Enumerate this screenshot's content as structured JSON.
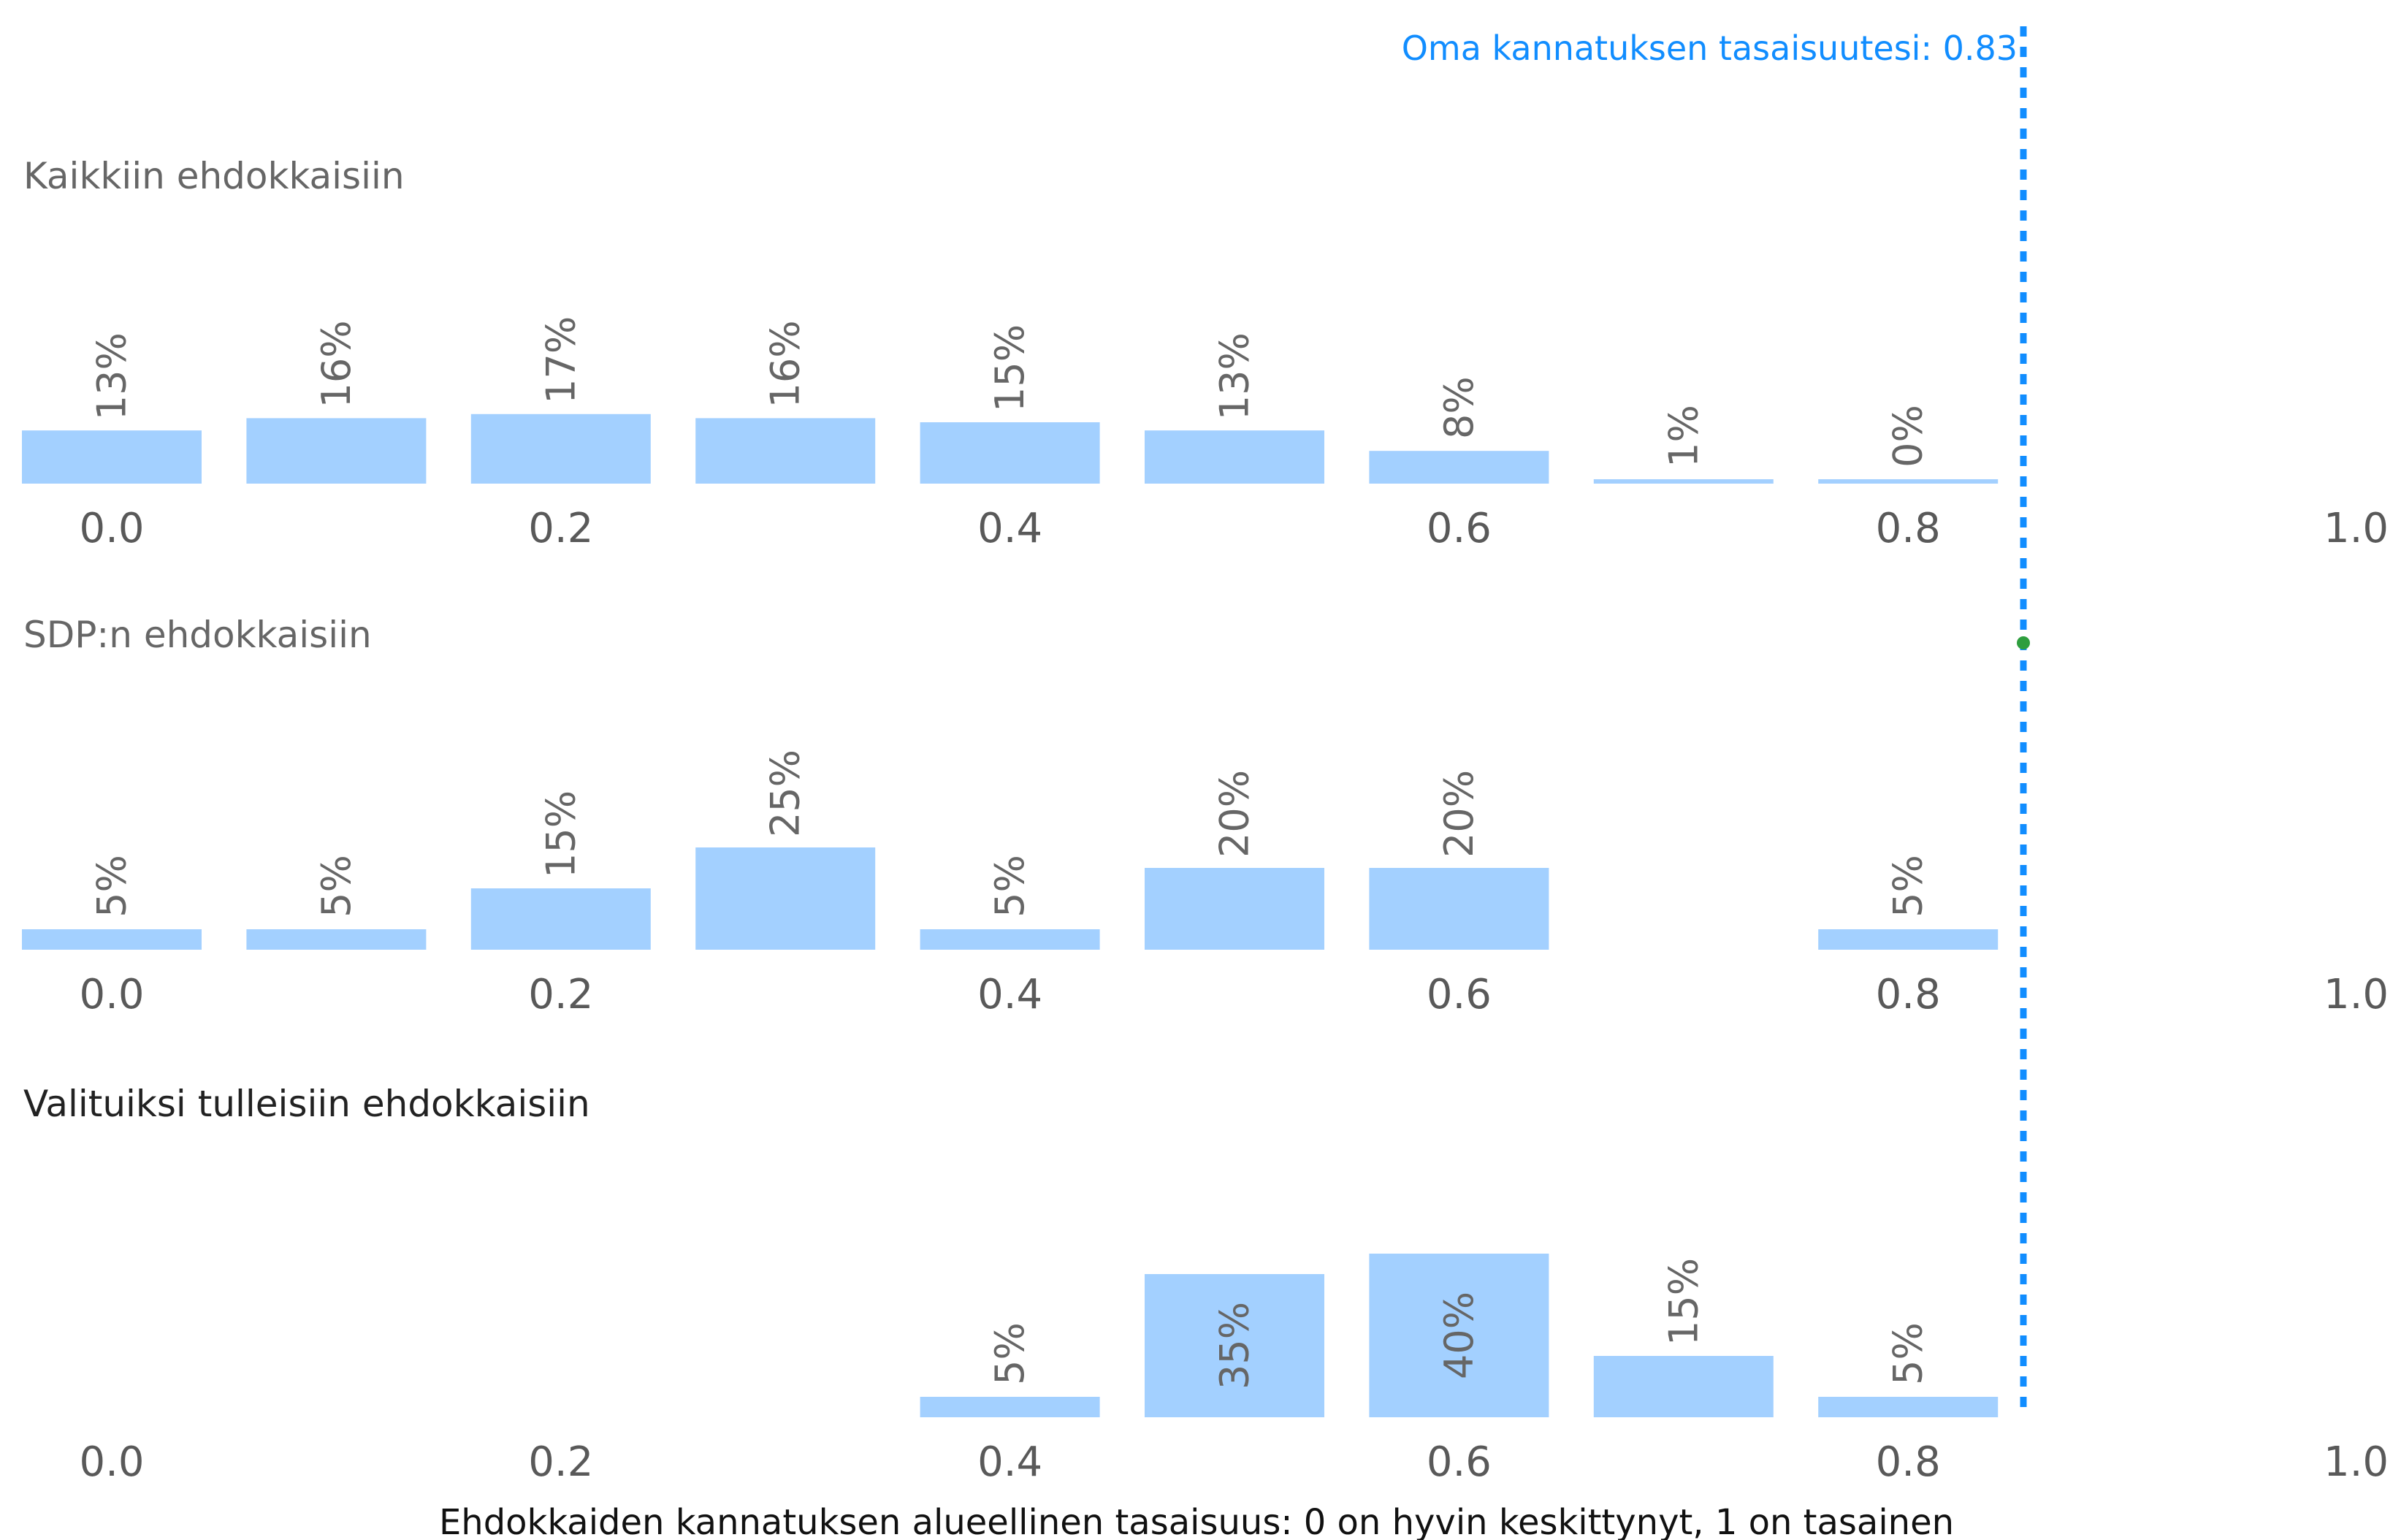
{
  "chart_data": {
    "type": "bar",
    "xlabel": "Ehdokkaiden kannatuksen alueellinen tasaisuus: 0 on hyvin keskittynyt, 1 on tasainen",
    "x_ticks": [
      "0.0",
      "0.2",
      "0.4",
      "0.6",
      "0.8",
      "1.0"
    ],
    "x_range": [
      0.0,
      1.0
    ],
    "bar_color": "#A3D0FF",
    "reference_line": {
      "value": 0.83,
      "label": "Oma kannatuksen tasaisuutesi: 0.83",
      "color": "#118DFF",
      "style": "dotted"
    },
    "panels": [
      {
        "title": "Kaikkiin ehdokkaisiin",
        "categories": [
          0.0,
          0.1,
          0.2,
          0.3,
          0.4,
          0.5,
          0.6,
          0.7,
          0.8
        ],
        "values": [
          13,
          16,
          17,
          16,
          15,
          13,
          8,
          1,
          0.3
        ],
        "labels": [
          "13%",
          "16%",
          "17%",
          "16%",
          "15%",
          "13%",
          "8%",
          "1%",
          "0%"
        ]
      },
      {
        "title": "SDP:n ehdokkaisiin",
        "categories": [
          0.0,
          0.1,
          0.2,
          0.3,
          0.4,
          0.5,
          0.6,
          0.8
        ],
        "values": [
          5,
          5,
          15,
          25,
          5,
          20,
          20,
          5
        ],
        "labels": [
          "5%",
          "5%",
          "15%",
          "25%",
          "5%",
          "20%",
          "20%",
          "5%"
        ]
      },
      {
        "title": "Valituiksi tulleisiin ehdokkaisiin",
        "categories": [
          0.4,
          0.5,
          0.6,
          0.7,
          0.8
        ],
        "values": [
          5,
          35,
          40,
          15,
          5
        ],
        "labels": [
          "5%",
          "35%",
          "40%",
          "15%",
          "5%"
        ]
      }
    ]
  }
}
